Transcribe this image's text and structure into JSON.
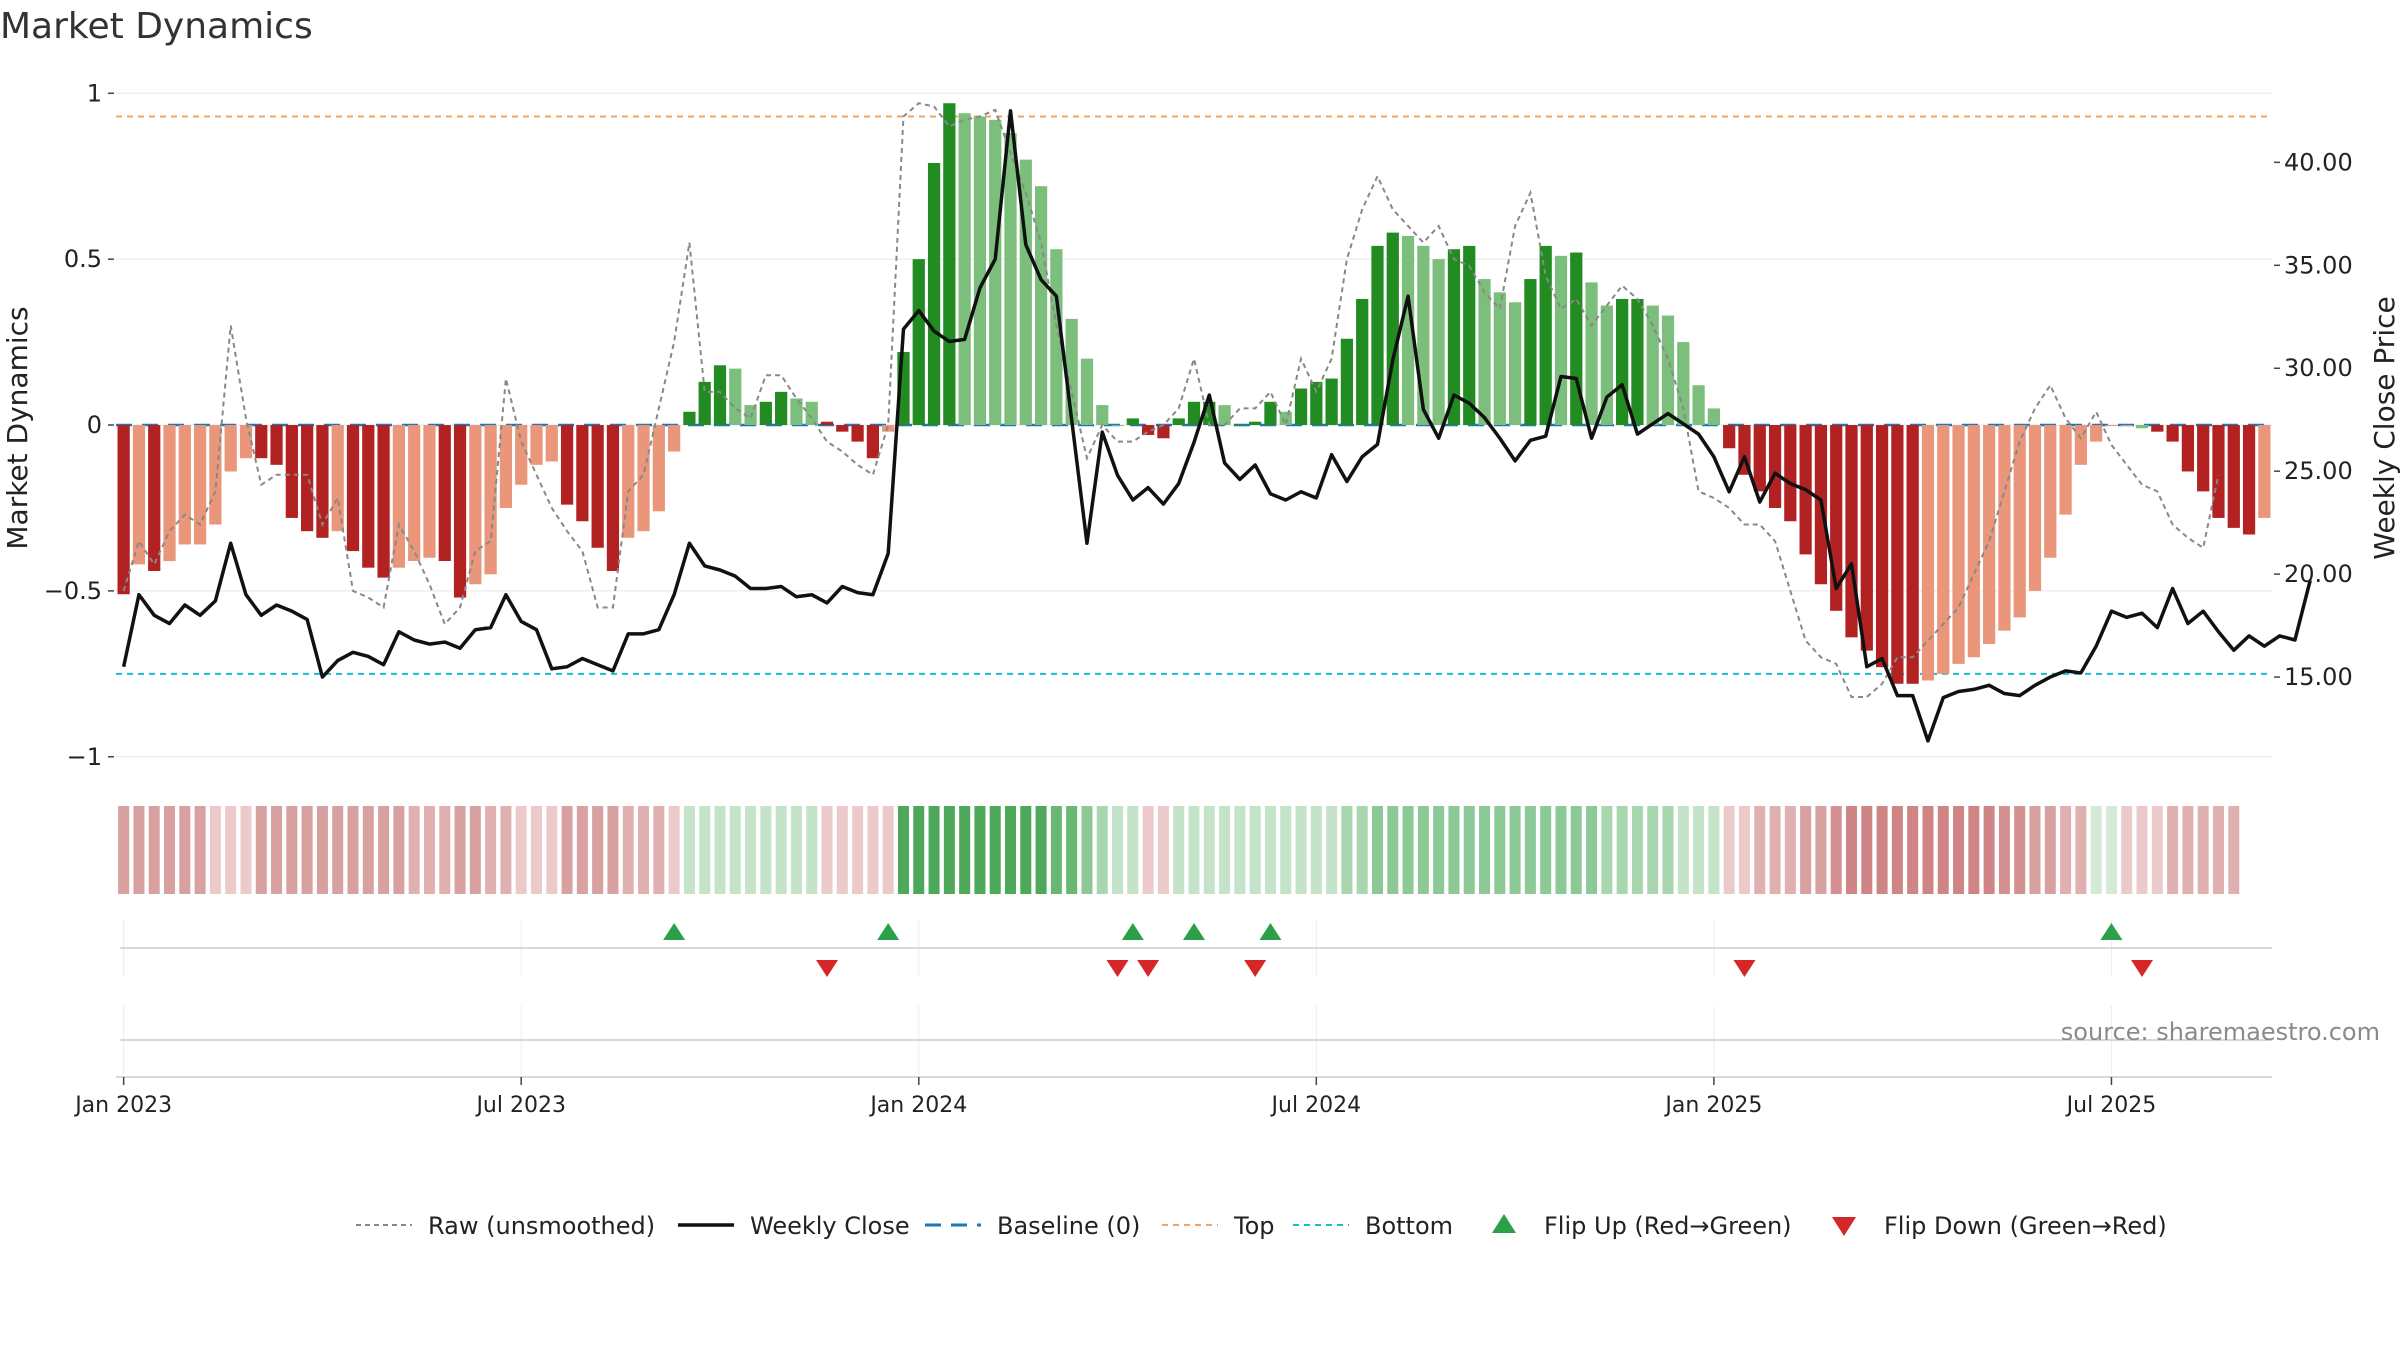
{
  "chart_data": {
    "type": "bar",
    "title": "Market Dynamics",
    "ylabel_left": "Market Dynamics",
    "ylabel_right": "Weekly Close Price",
    "ylim_left": [
      -1.07,
      1.04
    ],
    "ylim_right": [
      10.0,
      44.0
    ],
    "left_ticks": [
      {
        "value": 1,
        "label": "1"
      },
      {
        "value": 0.5,
        "label": "0.5"
      },
      {
        "value": 0,
        "label": "0"
      },
      {
        "value": -0.5,
        "label": "−0.5"
      },
      {
        "value": -1,
        "label": "−1"
      }
    ],
    "right_ticks": [
      {
        "value": 40,
        "label": "40.00"
      },
      {
        "value": 35,
        "label": "35.00"
      },
      {
        "value": 30,
        "label": "30.00"
      },
      {
        "value": 25,
        "label": "25.00"
      },
      {
        "value": 20,
        "label": "20.00"
      },
      {
        "value": 15,
        "label": "15.00"
      }
    ],
    "x_ticks": [
      {
        "week": 1,
        "label": "Jan 2023"
      },
      {
        "week": 27,
        "label": "Jul 2023"
      },
      {
        "week": 53,
        "label": "Jan 2024"
      },
      {
        "week": 79,
        "label": "Jul 2024"
      },
      {
        "week": 105,
        "label": "Jan 2025"
      },
      {
        "week": 131,
        "label": "Jul 2025"
      }
    ],
    "top_level": 0.93,
    "bottom_level": -0.75,
    "bars": [
      -0.51,
      -0.42,
      -0.44,
      -0.41,
      -0.36,
      -0.36,
      -0.3,
      -0.14,
      -0.1,
      -0.1,
      -0.12,
      -0.28,
      -0.32,
      -0.34,
      -0.32,
      -0.38,
      -0.43,
      -0.46,
      -0.43,
      -0.41,
      -0.4,
      -0.41,
      -0.52,
      -0.48,
      -0.45,
      -0.25,
      -0.18,
      -0.12,
      -0.11,
      -0.24,
      -0.29,
      -0.37,
      -0.44,
      -0.34,
      -0.32,
      -0.26,
      -0.08,
      0.04,
      0.13,
      0.18,
      0.17,
      0.06,
      0.07,
      0.1,
      0.08,
      0.07,
      0.01,
      -0.02,
      -0.05,
      -0.1,
      -0.02,
      0.22,
      0.5,
      0.79,
      0.97,
      0.94,
      0.93,
      0.92,
      0.88,
      0.8,
      0.72,
      0.53,
      0.32,
      0.2,
      0.06,
      0.0,
      0.02,
      -0.03,
      -0.04,
      0.02,
      0.07,
      0.07,
      0.06,
      0.0,
      0.01,
      0.07,
      0.04,
      0.11,
      0.13,
      0.14,
      0.26,
      0.38,
      0.54,
      0.58,
      0.57,
      0.54,
      0.5,
      0.53,
      0.54,
      0.44,
      0.4,
      0.37,
      0.44,
      0.54,
      0.51,
      0.52,
      0.43,
      0.36,
      0.38,
      0.38,
      0.36,
      0.33,
      0.25,
      0.12,
      0.05,
      -0.07,
      -0.15,
      -0.2,
      -0.25,
      -0.29,
      -0.39,
      -0.48,
      -0.56,
      -0.64,
      -0.68,
      -0.73,
      -0.78,
      -0.78,
      -0.77,
      -0.75,
      -0.72,
      -0.7,
      -0.66,
      -0.62,
      -0.58,
      -0.5,
      -0.4,
      -0.27,
      -0.12,
      -0.05,
      0.0,
      0.0,
      -0.01,
      -0.02,
      -0.05,
      -0.14,
      -0.2,
      -0.28,
      -0.31,
      -0.33,
      -0.28
    ],
    "bar_colors": [
      "#b22222",
      "#e9967a",
      "#b22222",
      "#e9967a",
      "#e9967a",
      "#e9967a",
      "#e9967a",
      "#e9967a",
      "#e9967a",
      "#b22222",
      "#b22222",
      "#b22222",
      "#b22222",
      "#b22222",
      "#e9967a",
      "#b22222",
      "#b22222",
      "#b22222",
      "#e9967a",
      "#e9967a",
      "#e9967a",
      "#b22222",
      "#b22222",
      "#e9967a",
      "#e9967a",
      "#e9967a",
      "#e9967a",
      "#e9967a",
      "#e9967a",
      "#b22222",
      "#b22222",
      "#b22222",
      "#b22222",
      "#e9967a",
      "#e9967a",
      "#e9967a",
      "#e9967a",
      "#228b22",
      "#228b22",
      "#228b22",
      "#7cbf7c",
      "#7cbf7c",
      "#228b22",
      "#228b22",
      "#7cbf7c",
      "#7cbf7c",
      "#b22222",
      "#b22222",
      "#b22222",
      "#b22222",
      "#e9967a",
      "#228b22",
      "#228b22",
      "#228b22",
      "#228b22",
      "#7cbf7c",
      "#7cbf7c",
      "#7cbf7c",
      "#7cbf7c",
      "#7cbf7c",
      "#7cbf7c",
      "#7cbf7c",
      "#7cbf7c",
      "#7cbf7c",
      "#7cbf7c",
      "#7cbf7c",
      "#228b22",
      "#b22222",
      "#b22222",
      "#228b22",
      "#228b22",
      "#228b22",
      "#7cbf7c",
      "#228b22",
      "#228b22",
      "#228b22",
      "#7cbf7c",
      "#228b22",
      "#228b22",
      "#228b22",
      "#228b22",
      "#228b22",
      "#228b22",
      "#228b22",
      "#7cbf7c",
      "#7cbf7c",
      "#7cbf7c",
      "#228b22",
      "#228b22",
      "#7cbf7c",
      "#7cbf7c",
      "#7cbf7c",
      "#228b22",
      "#228b22",
      "#7cbf7c",
      "#228b22",
      "#7cbf7c",
      "#7cbf7c",
      "#228b22",
      "#228b22",
      "#7cbf7c",
      "#7cbf7c",
      "#7cbf7c",
      "#7cbf7c",
      "#7cbf7c",
      "#b22222",
      "#b22222",
      "#b22222",
      "#b22222",
      "#b22222",
      "#b22222",
      "#b22222",
      "#b22222",
      "#b22222",
      "#b22222",
      "#b22222",
      "#b22222",
      "#b22222",
      "#e9967a",
      "#e9967a",
      "#e9967a",
      "#e9967a",
      "#e9967a",
      "#e9967a",
      "#e9967a",
      "#e9967a",
      "#e9967a",
      "#e9967a",
      "#e9967a",
      "#e9967a",
      "#e9967a",
      "#e9967a",
      "#7cbf7c",
      "#b22222",
      "#b22222",
      "#b22222",
      "#b22222",
      "#b22222",
      "#b22222",
      "#b22222",
      "#e9967a"
    ],
    "raw_unsmoothed": [
      -0.5,
      -0.35,
      -0.42,
      -0.32,
      -0.27,
      -0.3,
      -0.2,
      0.3,
      0.02,
      -0.18,
      -0.15,
      -0.15,
      -0.15,
      -0.3,
      -0.22,
      -0.5,
      -0.52,
      -0.55,
      -0.3,
      -0.38,
      -0.48,
      -0.6,
      -0.55,
      -0.38,
      -0.35,
      0.14,
      -0.05,
      -0.15,
      -0.25,
      -0.32,
      -0.38,
      -0.55,
      -0.55,
      -0.2,
      -0.15,
      0.05,
      0.25,
      0.55,
      0.1,
      0.1,
      0.05,
      0.02,
      0.15,
      0.15,
      0.08,
      0.02,
      -0.05,
      -0.08,
      -0.12,
      -0.15,
      0.0,
      0.93,
      0.97,
      0.96,
      0.9,
      0.92,
      0.93,
      0.95,
      0.82,
      0.7,
      0.55,
      0.3,
      0.1,
      -0.1,
      0.0,
      -0.05,
      -0.05,
      -0.02,
      0.0,
      0.05,
      0.2,
      0.0,
      0.0,
      0.05,
      0.05,
      0.1,
      0.0,
      0.2,
      0.1,
      0.2,
      0.5,
      0.65,
      0.75,
      0.65,
      0.6,
      0.55,
      0.6,
      0.5,
      0.48,
      0.4,
      0.35,
      0.6,
      0.7,
      0.45,
      0.35,
      0.38,
      0.3,
      0.36,
      0.42,
      0.38,
      0.3,
      0.2,
      0.05,
      -0.2,
      -0.22,
      -0.25,
      -0.3,
      -0.3,
      -0.35,
      -0.5,
      -0.65,
      -0.7,
      -0.72,
      -0.82,
      -0.82,
      -0.78,
      -0.7,
      -0.7,
      -0.65,
      -0.6,
      -0.55,
      -0.45,
      -0.35,
      -0.2,
      -0.05,
      0.05,
      0.12,
      0.02,
      -0.04,
      0.04,
      -0.06,
      -0.12,
      -0.18,
      -0.2,
      -0.3,
      -0.34,
      -0.37,
      -0.15
    ],
    "weekly_close": [
      15.5,
      19.0,
      18.0,
      17.6,
      18.5,
      18.0,
      18.7,
      21.5,
      19.0,
      18.0,
      18.5,
      18.2,
      17.8,
      15.0,
      15.8,
      16.2,
      16.0,
      15.6,
      17.2,
      16.8,
      16.6,
      16.7,
      16.4,
      17.3,
      17.4,
      19.0,
      17.7,
      17.3,
      15.4,
      15.5,
      15.9,
      15.6,
      15.3,
      17.1,
      17.1,
      17.3,
      19.0,
      21.5,
      20.4,
      20.2,
      19.9,
      19.3,
      19.3,
      19.4,
      18.9,
      19.0,
      18.6,
      19.4,
      19.1,
      19.0,
      21.0,
      31.9,
      32.8,
      31.8,
      31.3,
      31.4,
      33.9,
      35.3,
      42.5,
      36.0,
      34.3,
      33.5,
      27.5,
      21.5,
      26.9,
      24.8,
      23.6,
      24.2,
      23.4,
      24.4,
      26.4,
      28.7,
      25.4,
      24.6,
      25.3,
      23.9,
      23.6,
      24.0,
      23.7,
      25.8,
      24.5,
      25.7,
      26.3,
      30.4,
      33.5,
      28.0,
      26.6,
      28.7,
      28.3,
      27.6,
      26.6,
      25.5,
      26.5,
      26.7,
      29.6,
      29.5,
      26.6,
      28.6,
      29.2,
      26.8,
      27.3,
      27.8,
      27.3,
      26.8,
      25.7,
      24.0,
      25.7,
      23.5,
      24.9,
      24.4,
      24.1,
      23.6,
      19.3,
      20.5,
      15.5,
      15.9,
      14.1,
      14.1,
      11.9,
      14.0,
      14.3,
      14.4,
      14.6,
      14.2,
      14.1,
      14.6,
      15.0,
      15.3,
      15.2,
      16.5,
      18.2,
      17.9,
      18.1,
      17.4,
      19.3,
      17.6,
      18.2,
      17.2,
      16.3,
      17.0,
      16.5,
      17.0,
      16.8,
      19.7
    ],
    "regime_strip": [
      "#d9a0a0",
      "#d9a0a0",
      "#d9a0a0",
      "#d9a0a0",
      "#d9a0a0",
      "#d9a0a0",
      "#eccaca",
      "#eccaca",
      "#eccaca",
      "#d9a0a0",
      "#d9a0a0",
      "#d9a0a0",
      "#d9a0a0",
      "#d9a0a0",
      "#d9a0a0",
      "#d9a0a0",
      "#d9a0a0",
      "#d9a0a0",
      "#d9a0a0",
      "#e0b0b0",
      "#e0b0b0",
      "#e0b0b0",
      "#d9a0a0",
      "#d9a0a0",
      "#e0b0b0",
      "#e0b0b0",
      "#eccaca",
      "#eccaca",
      "#eccaca",
      "#d9a0a0",
      "#d9a0a0",
      "#d9a0a0",
      "#d9a0a0",
      "#e0b0b0",
      "#e0b0b0",
      "#e0b0b0",
      "#eccaca",
      "#c4e3c8",
      "#c4e3c8",
      "#c4e3c8",
      "#c4e3c8",
      "#c4e3c8",
      "#c4e3c8",
      "#c4e3c8",
      "#c4e3c8",
      "#c4e3c8",
      "#eccaca",
      "#eccaca",
      "#eccaca",
      "#eccaca",
      "#eccaca",
      "#4ea85a",
      "#4ea85a",
      "#4ea85a",
      "#4ea85a",
      "#4ea85a",
      "#4ea85a",
      "#4ea85a",
      "#4ea85a",
      "#4ea85a",
      "#4ea85a",
      "#68b873",
      "#68b873",
      "#8cc996",
      "#a8d6ae",
      "#c4e3c8",
      "#c4e3c8",
      "#eccaca",
      "#eccaca",
      "#c4e3c8",
      "#c4e3c8",
      "#c4e3c8",
      "#c4e3c8",
      "#c4e3c8",
      "#c4e3c8",
      "#c4e3c8",
      "#c4e3c8",
      "#c4e3c8",
      "#c4e3c8",
      "#c4e3c8",
      "#a8d6ae",
      "#a8d6ae",
      "#8cc996",
      "#8cc996",
      "#8cc996",
      "#8cc996",
      "#8cc996",
      "#8cc996",
      "#8cc996",
      "#8cc996",
      "#8cc996",
      "#8cc996",
      "#8cc996",
      "#8cc996",
      "#8cc996",
      "#8cc996",
      "#8cc996",
      "#a8d6ae",
      "#a8d6ae",
      "#a8d6ae",
      "#a8d6ae",
      "#a8d6ae",
      "#c4e3c8",
      "#c4e3c8",
      "#c4e3c8",
      "#eccaca",
      "#eccaca",
      "#e0b0b0",
      "#e0b0b0",
      "#e0b0b0",
      "#d9a0a0",
      "#d9a0a0",
      "#d49090",
      "#cf8585",
      "#cf8585",
      "#cf8585",
      "#cf8585",
      "#cf8585",
      "#cf8585",
      "#cf8585",
      "#cf8585",
      "#cf8585",
      "#cf8585",
      "#d49090",
      "#d49090",
      "#d9a0a0",
      "#d9a0a0",
      "#e0b0b0",
      "#e0b0b0",
      "#d4ead7",
      "#d4ead7",
      "#eccaca",
      "#eccaca",
      "#eccaca",
      "#e0b0b0",
      "#e0b0b0",
      "#e0b0b0",
      "#e0b0b0",
      "#e0b0b0"
    ],
    "flip_up_weeks": [
      37,
      51,
      67,
      71,
      76,
      131
    ],
    "flip_down_weeks": [
      47,
      66,
      68,
      75,
      107,
      133
    ],
    "legend": [
      {
        "key": "raw",
        "label": "Raw (unsmoothed)"
      },
      {
        "key": "close",
        "label": "Weekly Close"
      },
      {
        "key": "baseline",
        "label": "Baseline (0)"
      },
      {
        "key": "top",
        "label": "Top"
      },
      {
        "key": "bottom",
        "label": "Bottom"
      },
      {
        "key": "flip_up",
        "label": "Flip Up (Red→Green)"
      },
      {
        "key": "flip_down",
        "label": "Flip Down (Green→Red)"
      }
    ],
    "source_text": "source: sharemaestro.com",
    "colors": {
      "raw": "#888888",
      "close": "#111111",
      "baseline": "#1f77b4",
      "top": "#f4a460",
      "bottom": "#17becf",
      "flip_up": "#2ca048",
      "flip_down": "#d62728"
    },
    "grid": true,
    "legend_placement": "bottom-center"
  }
}
